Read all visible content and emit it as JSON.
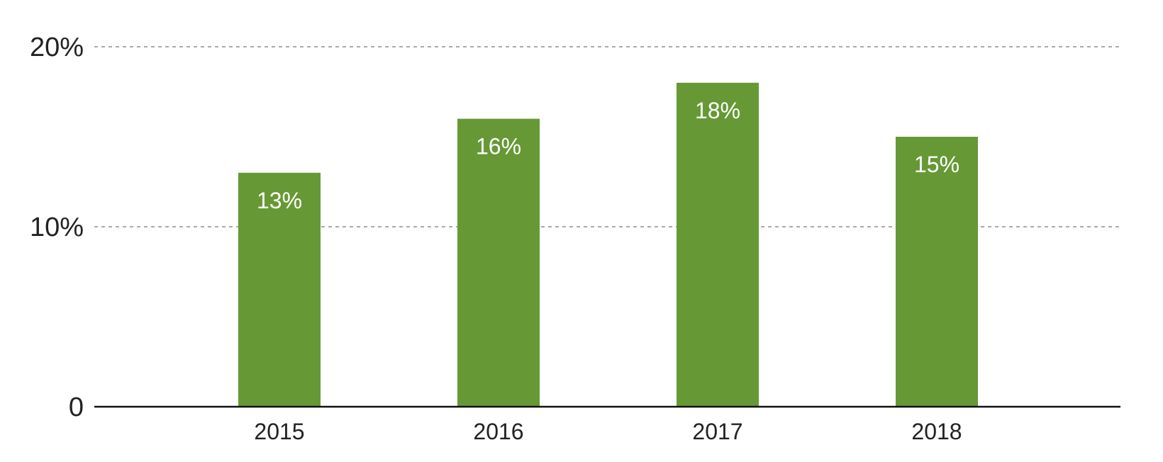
{
  "chart_data": {
    "type": "bar",
    "categories": [
      "2015",
      "2016",
      "2017",
      "2018"
    ],
    "values": [
      13,
      16,
      18,
      15
    ],
    "data_labels": [
      "13%",
      "16%",
      "18%",
      "15%"
    ],
    "title": "",
    "xlabel": "",
    "ylabel": "",
    "ylim": [
      0,
      20
    ],
    "yticks": [
      {
        "value": 0,
        "label": "0"
      },
      {
        "value": 10,
        "label": "10%"
      },
      {
        "value": 20,
        "label": "20%"
      }
    ],
    "grid": true,
    "colors": {
      "bar": "#669935",
      "grid": "#aaaaaa",
      "axis": "#111111"
    }
  }
}
